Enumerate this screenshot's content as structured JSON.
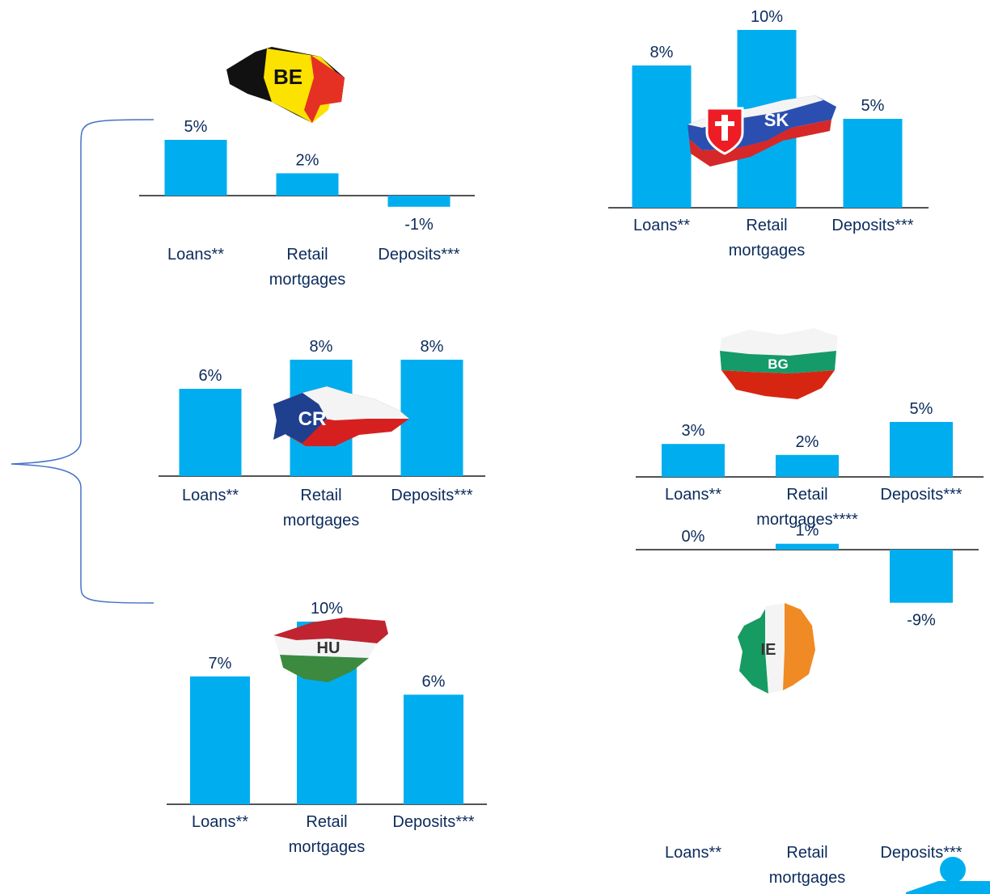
{
  "colors": {
    "bar": "#00aeef",
    "text": "#0b2b5c",
    "baseline": "#1a1a1a"
  },
  "chart_data": [
    {
      "type": "bar",
      "country": "BE",
      "categories": [
        "Loans**",
        "Retail\nmortgages",
        "Deposits***"
      ],
      "values": [
        5,
        2,
        -1
      ],
      "labels": [
        "5%",
        "2%",
        "-1%"
      ],
      "ylim": [
        -1,
        5
      ]
    },
    {
      "type": "bar",
      "country": "CR",
      "categories": [
        "Loans**",
        "Retail\nmortgages",
        "Deposits***"
      ],
      "values": [
        6,
        8,
        8
      ],
      "labels": [
        "6%",
        "8%",
        "8%"
      ],
      "ylim": [
        0,
        8
      ]
    },
    {
      "type": "bar",
      "country": "HU",
      "categories": [
        "Loans**",
        "Retail\nmortgages",
        "Deposits***"
      ],
      "values": [
        7,
        10,
        6
      ],
      "labels": [
        "7%",
        "10%",
        "6%"
      ],
      "ylim": [
        0,
        10
      ]
    },
    {
      "type": "bar",
      "country": "SK",
      "categories": [
        "Loans**",
        "Retail\nmortgages",
        "Deposits***"
      ],
      "values": [
        8,
        10,
        5
      ],
      "labels": [
        "8%",
        "10%",
        "5%"
      ],
      "ylim": [
        0,
        10
      ]
    },
    {
      "type": "bar",
      "country": "BG",
      "categories": [
        "Loans**",
        "Retail\nmortgages****",
        "Deposits***"
      ],
      "values": [
        3,
        2,
        5
      ],
      "labels": [
        "3%",
        "2%",
        "5%"
      ],
      "ylim": [
        0,
        5
      ]
    },
    {
      "type": "bar",
      "country": "IE",
      "categories": [
        "Loans**",
        "Retail\nmortgages",
        "Deposits***"
      ],
      "values": [
        0,
        1,
        -9
      ],
      "labels": [
        "0%",
        "1%",
        "-9%"
      ],
      "ylim": [
        -9,
        1
      ]
    }
  ]
}
